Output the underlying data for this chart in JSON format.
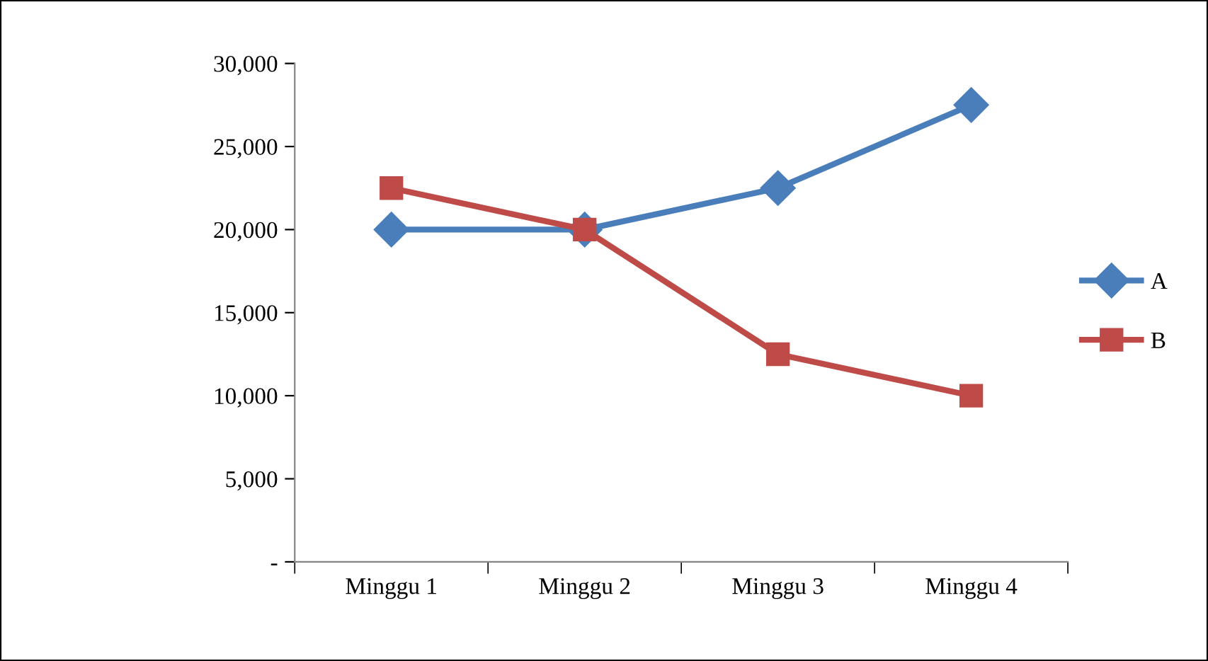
{
  "chart_data": {
    "type": "line",
    "categories": [
      "Minggu 1",
      "Minggu 2",
      "Minggu 3",
      "Minggu 4"
    ],
    "series": [
      {
        "name": "A",
        "color": "#4a7ebb",
        "marker": "diamond",
        "values": [
          20000,
          20000,
          22500,
          27500
        ]
      },
      {
        "name": "B",
        "color": "#be4b48",
        "marker": "square",
        "values": [
          22500,
          20000,
          12500,
          10000
        ]
      }
    ],
    "ylim": [
      0,
      30000
    ],
    "yticks": [
      {
        "value": 0,
        "label": "-"
      },
      {
        "value": 5000,
        "label": "5,000"
      },
      {
        "value": 10000,
        "label": "10,000"
      },
      {
        "value": 15000,
        "label": "15,000"
      },
      {
        "value": 20000,
        "label": "20,000"
      },
      {
        "value": 25000,
        "label": "25,000"
      },
      {
        "value": 30000,
        "label": "30,000"
      }
    ],
    "grid": false,
    "legend": "right",
    "line_style": "solid"
  }
}
